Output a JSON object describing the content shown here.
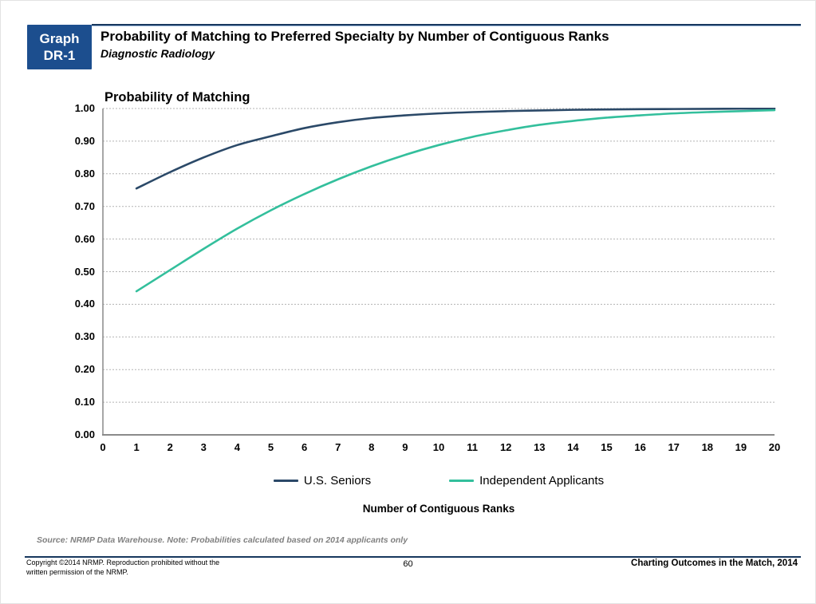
{
  "page": {
    "badge": {
      "line1": "Graph",
      "line2": "DR-1",
      "bg_color": "#1C4E8E"
    },
    "header": {
      "title": "Probability of Matching to Preferred Specialty by Number of Contiguous Ranks",
      "subtitle": "Diagnostic Radiology",
      "rule_color": "#17375E",
      "rule_shadow_color": "#9AB6D8"
    },
    "source_note": "Source: NRMP Data Warehouse. Note: Probabilities calculated based on 2014 applicants only",
    "footer": {
      "copyright_line1": "Copyright ©2014 NRMP. Reproduction prohibited without the",
      "copyright_line2": "written permission of the NRMP.",
      "page_number": "60",
      "publication": "Charting Outcomes in the Match, 2014",
      "rule_color": "#17375E"
    }
  },
  "chart_data": {
    "type": "line",
    "title": "Probability of Matching",
    "xlabel": "Number of Contiguous Ranks",
    "ylabel": "",
    "xlim": [
      0,
      20
    ],
    "ylim": [
      0.0,
      1.0
    ],
    "grid": "horizontal, dashed, light gray",
    "legend_position": "bottom-center",
    "xticks": [
      "0",
      "1",
      "2",
      "3",
      "4",
      "5",
      "6",
      "7",
      "8",
      "9",
      "10",
      "11",
      "12",
      "13",
      "14",
      "15",
      "16",
      "17",
      "18",
      "19",
      "20"
    ],
    "yticks": [
      "0.00",
      "0.10",
      "0.20",
      "0.30",
      "0.40",
      "0.50",
      "0.60",
      "0.70",
      "0.80",
      "0.90",
      "1.00"
    ],
    "x": [
      1,
      2,
      3,
      4,
      5,
      6,
      7,
      8,
      9,
      10,
      11,
      12,
      13,
      14,
      15,
      16,
      17,
      18,
      19,
      20
    ],
    "series": [
      {
        "name": "U.S. Seniors",
        "color": "#2B4968",
        "values": [
          0.755,
          0.805,
          0.85,
          0.888,
          0.915,
          0.94,
          0.958,
          0.971,
          0.979,
          0.985,
          0.989,
          0.992,
          0.994,
          0.996,
          0.997,
          0.998,
          0.9985,
          0.999,
          0.9995,
          1.0
        ]
      },
      {
        "name": "Independent Applicants",
        "color": "#33BF9C",
        "values": [
          0.44,
          0.505,
          0.57,
          0.632,
          0.688,
          0.738,
          0.783,
          0.823,
          0.858,
          0.888,
          0.913,
          0.933,
          0.95,
          0.962,
          0.972,
          0.979,
          0.985,
          0.989,
          0.992,
          0.995
        ]
      }
    ],
    "style": {
      "gridline_color": "#B3B3B3",
      "axis_color": "#8A8A8A",
      "line_width": 2.6
    }
  }
}
